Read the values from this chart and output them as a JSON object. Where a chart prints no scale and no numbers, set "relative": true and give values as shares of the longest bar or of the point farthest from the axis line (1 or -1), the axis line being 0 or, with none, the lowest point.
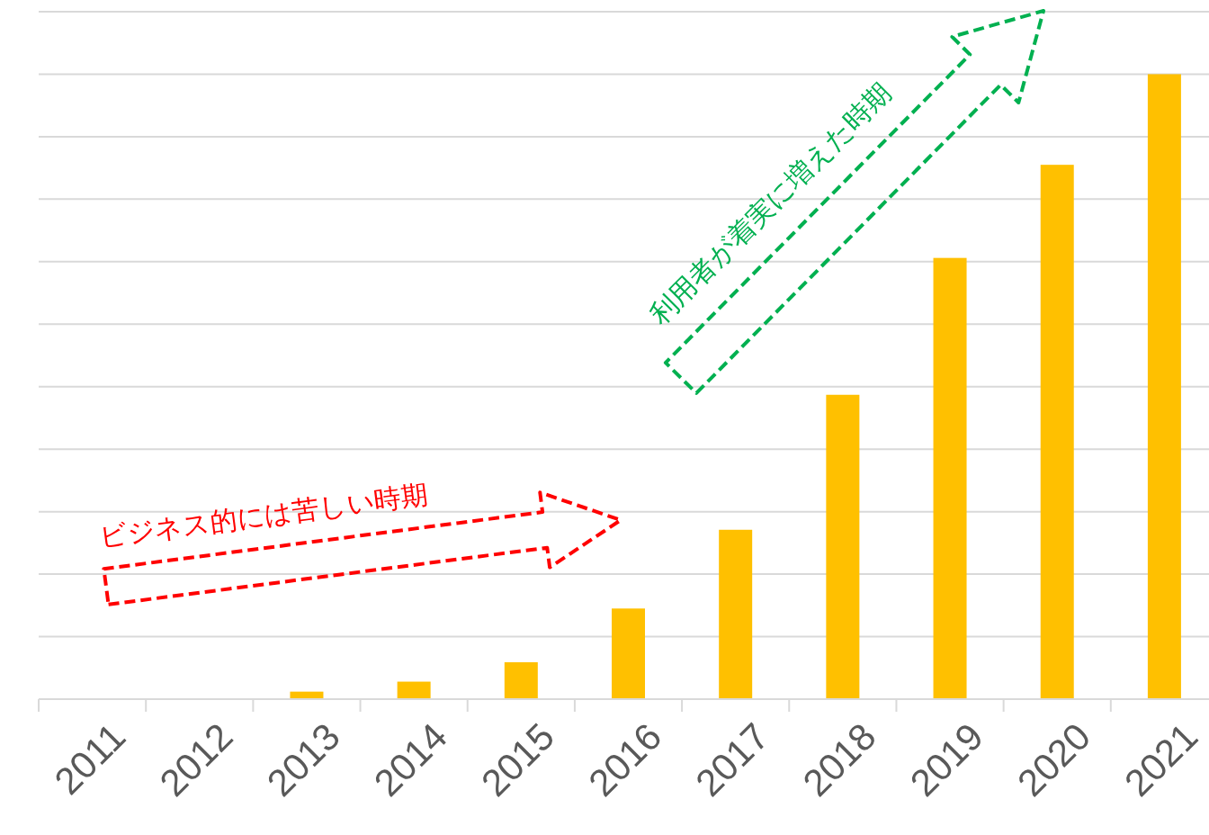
{
  "chart_data": {
    "type": "bar",
    "relative": true,
    "grid": "y",
    "color": "#ffc000",
    "categories": [
      "2011",
      "2012",
      "2013",
      "2014",
      "2015",
      "2016",
      "2017",
      "2018",
      "2019",
      "2020",
      "2021"
    ],
    "values": [
      0,
      0,
      0.012,
      0.028,
      0.059,
      0.145,
      0.271,
      0.487,
      0.706,
      0.855,
      1
    ],
    "annotations": [
      "ビジネス的には苦しい時期",
      "利用者が着実に増えた時期"
    ]
  }
}
